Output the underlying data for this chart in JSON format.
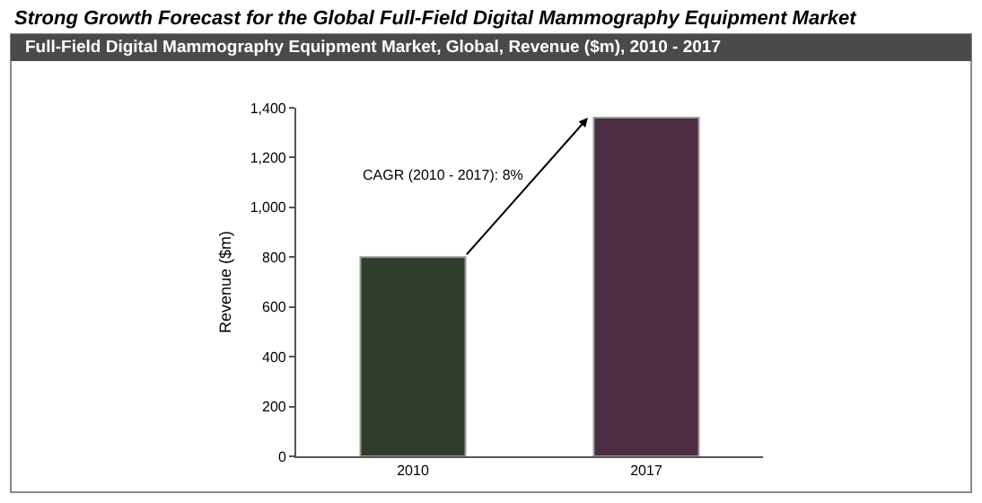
{
  "chart_data": {
    "type": "bar",
    "title": "Strong Growth Forecast for the Global Full-Field Digital Mammography Equipment Market",
    "subtitle": "Full-Field Digital Mammography Equipment Market, Global, Revenue ($m), 2010 - 2017",
    "ylabel": "Revenue ($m)",
    "categories": [
      "2010",
      "2017"
    ],
    "values": [
      800,
      1360
    ],
    "colors": [
      "#2f3d2b",
      "#4b2c40"
    ],
    "ylim": [
      0,
      1400
    ],
    "yticks": [
      0,
      {
        "value": 200,
        "label": "200"
      },
      {
        "value": 400,
        "label": "400"
      },
      {
        "value": 600,
        "label": "600"
      },
      {
        "value": 800,
        "label": "800"
      },
      {
        "value": 1000,
        "label": "1,000"
      },
      {
        "value": 1200,
        "label": "1,200"
      },
      {
        "value": 1400,
        "label": "1,400"
      }
    ],
    "annotations": [
      "CAGR (2010 - 2017): 8%"
    ],
    "legend": false
  }
}
